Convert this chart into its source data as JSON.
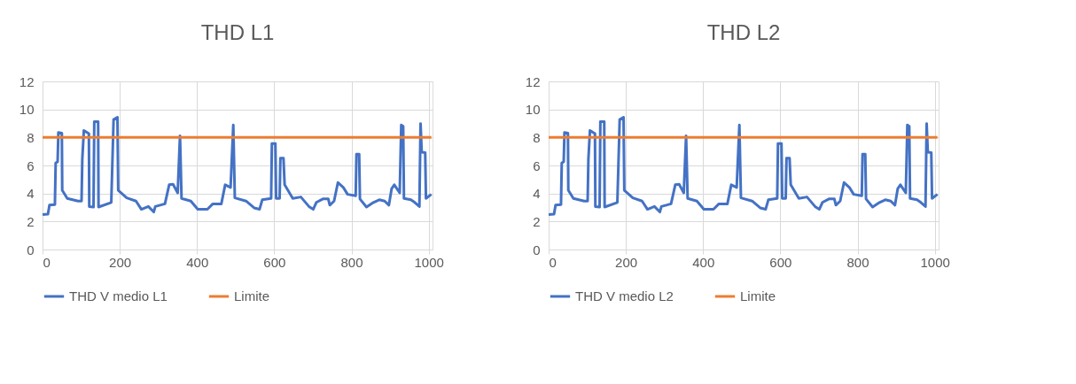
{
  "chart_data": [
    {
      "type": "line",
      "title": "THD L1",
      "xlim": [
        0,
        1010
      ],
      "xticks": [
        0,
        200,
        400,
        600,
        800,
        1000
      ],
      "ylim": [
        0,
        12
      ],
      "yticks": [
        0,
        2,
        4,
        6,
        8,
        10,
        12
      ],
      "grid": true,
      "legend": "bottom",
      "line_style": "solid",
      "marker": "none",
      "series": [
        {
          "name": "THD V medio L1",
          "color": "#4472c4",
          "x": [
            0,
            14,
            18,
            32,
            34,
            39,
            41,
            50,
            51,
            64,
            92,
            101,
            103,
            107,
            120,
            121,
            132,
            134,
            144,
            145,
            178,
            184,
            194,
            196,
            218,
            242,
            256,
            274,
            288,
            292,
            317,
            328,
            338,
            350,
            356,
            360,
            384,
            402,
            427,
            441,
            463,
            473,
            487,
            494,
            498,
            527,
            548,
            562,
            569,
            592,
            594,
            603,
            605,
            614,
            616,
            624,
            627,
            648,
            669,
            690,
            701,
            709,
            726,
            740,
            744,
            755,
            765,
            779,
            790,
            811,
            813,
            820,
            822,
            839,
            857,
            872,
            886,
            897,
            904,
            911,
            925,
            929,
            934,
            936,
            954,
            964,
            976,
            979,
            982,
            991,
            993,
            1007
          ],
          "values": [
            2.49,
            2.52,
            3.17,
            3.2,
            6.17,
            6.27,
            8.35,
            8.31,
            4.23,
            3.65,
            3.46,
            3.46,
            6.47,
            8.5,
            8.27,
            3.07,
            3.03,
            9.13,
            9.13,
            3.03,
            3.36,
            9.28,
            9.44,
            4.23,
            3.69,
            3.46,
            2.87,
            3.07,
            2.68,
            3.07,
            3.26,
            4.62,
            4.66,
            4.04,
            8.12,
            3.65,
            3.46,
            2.87,
            2.87,
            3.26,
            3.26,
            4.62,
            4.43,
            8.89,
            3.69,
            3.46,
            2.97,
            2.87,
            3.55,
            3.65,
            7.57,
            7.57,
            3.65,
            3.65,
            6.52,
            6.52,
            4.62,
            3.65,
            3.75,
            3.07,
            2.87,
            3.36,
            3.61,
            3.61,
            3.17,
            3.46,
            4.78,
            4.43,
            3.94,
            3.84,
            6.8,
            6.8,
            3.61,
            3.03,
            3.36,
            3.55,
            3.46,
            3.17,
            4.33,
            4.62,
            4.04,
            8.89,
            8.8,
            3.65,
            3.55,
            3.36,
            3.07,
            8.99,
            6.95,
            6.91,
            3.65,
            3.94
          ]
        },
        {
          "name": "Limite",
          "color": "#ed7d31",
          "x": [
            0,
            1007
          ],
          "values": [
            8,
            8
          ]
        }
      ]
    },
    {
      "type": "line",
      "title": "THD L2",
      "xlim": [
        0,
        1010
      ],
      "xticks": [
        0,
        200,
        400,
        600,
        800,
        1000
      ],
      "ylim": [
        0,
        12
      ],
      "yticks": [
        0,
        2,
        4,
        6,
        8,
        10,
        12
      ],
      "grid": true,
      "legend": "bottom",
      "line_style": "solid",
      "marker": "none",
      "series": [
        {
          "name": "THD V medio L2",
          "color": "#4472c4",
          "x": [
            0,
            14,
            18,
            32,
            34,
            39,
            41,
            50,
            51,
            64,
            92,
            101,
            103,
            107,
            120,
            121,
            132,
            134,
            144,
            145,
            178,
            184,
            194,
            196,
            218,
            242,
            256,
            274,
            288,
            292,
            317,
            328,
            338,
            350,
            356,
            360,
            384,
            402,
            427,
            441,
            463,
            473,
            487,
            494,
            498,
            527,
            548,
            562,
            569,
            592,
            594,
            603,
            605,
            614,
            616,
            624,
            627,
            648,
            669,
            690,
            701,
            709,
            726,
            740,
            744,
            755,
            765,
            779,
            790,
            811,
            813,
            820,
            822,
            839,
            857,
            872,
            886,
            897,
            904,
            911,
            925,
            929,
            934,
            936,
            954,
            964,
            976,
            979,
            982,
            991,
            993,
            1007
          ],
          "values": [
            2.49,
            2.52,
            3.17,
            3.2,
            6.17,
            6.27,
            8.35,
            8.31,
            4.23,
            3.65,
            3.46,
            3.46,
            6.47,
            8.5,
            8.27,
            3.07,
            3.03,
            9.13,
            9.13,
            3.03,
            3.36,
            9.28,
            9.44,
            4.23,
            3.69,
            3.46,
            2.87,
            3.07,
            2.68,
            3.07,
            3.26,
            4.62,
            4.66,
            4.04,
            8.12,
            3.65,
            3.46,
            2.87,
            2.87,
            3.26,
            3.26,
            4.62,
            4.43,
            8.89,
            3.69,
            3.46,
            2.97,
            2.87,
            3.55,
            3.65,
            7.57,
            7.57,
            3.65,
            3.65,
            6.52,
            6.52,
            4.62,
            3.65,
            3.75,
            3.07,
            2.87,
            3.36,
            3.61,
            3.61,
            3.17,
            3.46,
            4.78,
            4.43,
            3.94,
            3.84,
            6.8,
            6.8,
            3.61,
            3.03,
            3.36,
            3.55,
            3.46,
            3.17,
            4.33,
            4.62,
            4.04,
            8.89,
            8.8,
            3.65,
            3.55,
            3.36,
            3.07,
            8.99,
            6.95,
            6.91,
            3.65,
            3.94
          ]
        },
        {
          "name": "Limite",
          "color": "#ed7d31",
          "x": [
            0,
            1007
          ],
          "values": [
            8,
            8
          ]
        }
      ]
    }
  ]
}
